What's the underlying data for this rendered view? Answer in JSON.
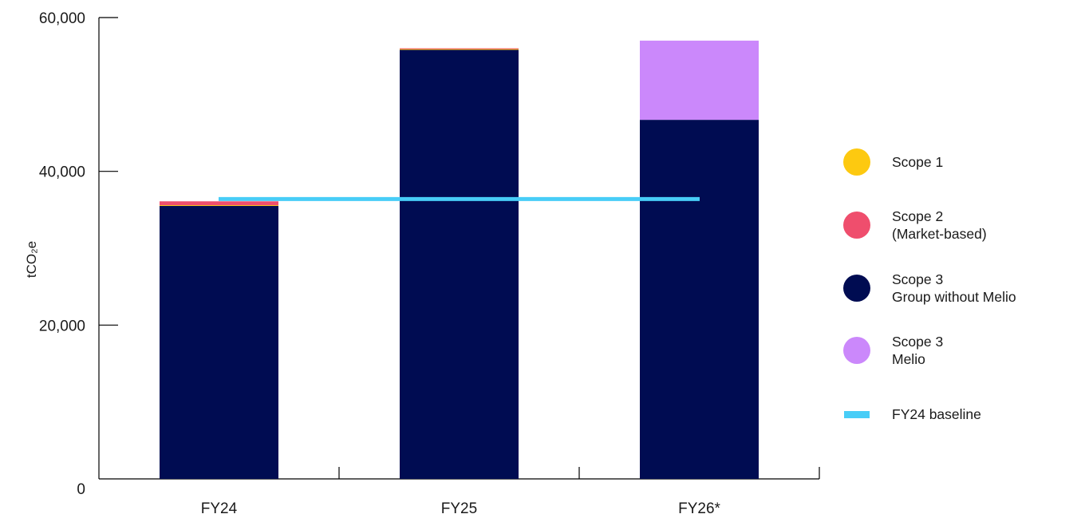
{
  "chart_data": {
    "type": "bar",
    "stacked": true,
    "categories": [
      "FY24",
      "FY25",
      "FY26*"
    ],
    "series": [
      {
        "name": "Scope 3\nGroup without Melio",
        "legend_lines": [
          "Scope 3",
          "Group without Melio"
        ],
        "values": [
          35500,
          55800,
          46700
        ],
        "color": "#000c52"
      },
      {
        "name": "Scope 1",
        "legend_lines": [
          "Scope 1"
        ],
        "values": [
          100,
          100,
          0
        ],
        "color": "#fdc910"
      },
      {
        "name": "Scope 2\n(Market-based)",
        "legend_lines": [
          "Scope 2",
          "(Market-based)"
        ],
        "values": [
          500,
          100,
          0
        ],
        "color": "#ef4e6d"
      },
      {
        "name": "Scope 3\nMelio",
        "legend_lines": [
          "Scope 3",
          "Melio"
        ],
        "values": [
          0,
          0,
          10300
        ],
        "color": "#cb88fb"
      }
    ],
    "baseline": {
      "name": "FY24 baseline",
      "value": 36400,
      "color": "#48cdf7"
    },
    "legend_order": [
      "Scope 1",
      "Scope 2\n(Market-based)",
      "Scope 3\nGroup without Melio",
      "Scope 3\nMelio",
      "FY24 baseline"
    ],
    "ylabel": "tCO₂e",
    "xlabel": "",
    "title": "",
    "ylim": [
      0,
      60000
    ],
    "yticks": [
      0,
      20000,
      40000,
      60000
    ],
    "ytick_labels": [
      "0",
      "20,000",
      "40,000",
      "60,000"
    ],
    "legend_position": "right",
    "grid": false
  }
}
